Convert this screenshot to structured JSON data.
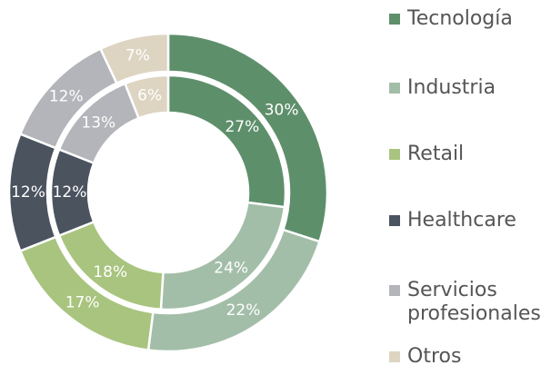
{
  "chart_data": {
    "type": "doughnut",
    "categories": [
      "Tecnología",
      "Industria",
      "Retail",
      "Healthcare",
      "Servicios profesionales",
      "Otros"
    ],
    "colors": [
      "#5e8f6b",
      "#a3bea8",
      "#a8c47e",
      "#4b535f",
      "#b3b5ba",
      "#ddd4c2"
    ],
    "series": [
      {
        "values": [
          30,
          22,
          17,
          12,
          12,
          7
        ],
        "value_labels": [
          "30%",
          "22%",
          "17%",
          "12%",
          "12%",
          "7%"
        ]
      },
      {
        "values": [
          27,
          24,
          18,
          12,
          13,
          6
        ],
        "value_labels": [
          "27%",
          "24%",
          "18%",
          "12%",
          "13%",
          "6%"
        ]
      }
    ],
    "legend": "right"
  }
}
